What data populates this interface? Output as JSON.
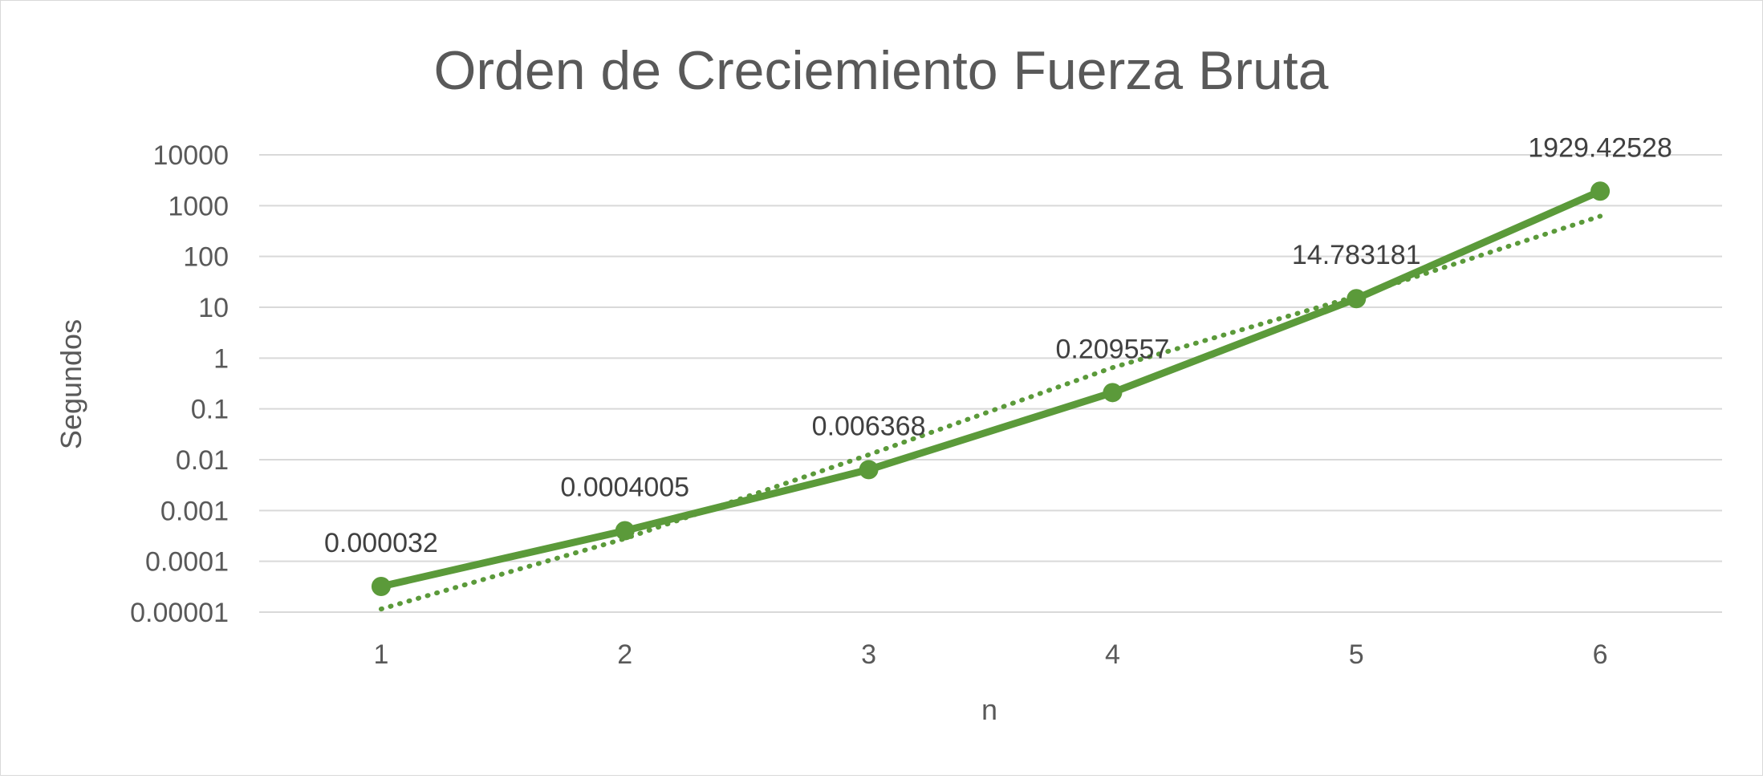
{
  "chart_data": {
    "type": "line",
    "title": "Orden de Creciemiento Fuerza Bruta",
    "xlabel": "n",
    "ylabel": "Segundos",
    "yscale": "log",
    "ylim": [
      1e-05,
      10000
    ],
    "yticks": [
      "10000",
      "1000",
      "100",
      "10",
      "1",
      "0.1",
      "0.01",
      "0.001",
      "0.0001",
      "0.00001"
    ],
    "categories": [
      "1",
      "2",
      "3",
      "4",
      "5",
      "6"
    ],
    "series": [
      {
        "values": [
          3.2e-05,
          0.0004005,
          0.006368,
          0.209557,
          14.783181,
          1929.42528
        ],
        "data_labels": [
          "0.000032",
          "0.0004005",
          "0.006368",
          "0.209557",
          "14.783181",
          "1929.42528"
        ],
        "color": "#5b9a3a",
        "marker": "circle"
      }
    ],
    "trendline": {
      "type": "exponential",
      "style": "dotted",
      "color": "#5b9a3a",
      "values": [
        1.15e-05,
        0.00028,
        0.0125,
        0.65,
        16.5,
        620
      ]
    },
    "grid": true,
    "legend": "none"
  }
}
